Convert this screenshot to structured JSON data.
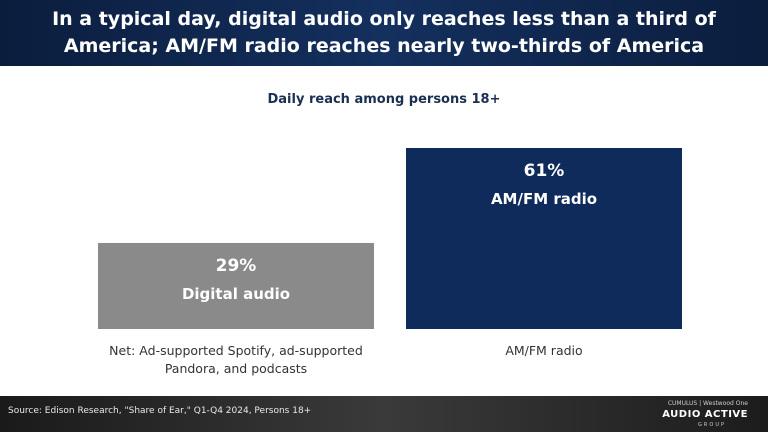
{
  "header": {
    "line1": "In a typical day, digital audio only reaches less than a third of",
    "line2": "America; AM/FM radio reaches nearly two-thirds of America"
  },
  "subtitle": "Daily reach among persons 18+",
  "chart_data": {
    "type": "bar",
    "title": "Daily reach among persons 18+",
    "ylim": [
      0,
      61
    ],
    "grid": false,
    "categories": [
      "Net: Ad-supported Spotify, ad-supported Pandora, and podcasts",
      "AM/FM radio"
    ],
    "values": [
      29,
      61
    ],
    "value_labels": [
      "29%",
      "AM/FM radio"
    ],
    "percent_labels": [
      "29%",
      "61%"
    ],
    "bar_names": [
      "Digital audio",
      "AM/FM radio"
    ],
    "category_label_lines": [
      [
        "Net: Ad-supported Spotify, ad-supported",
        "Pandora, and podcasts"
      ],
      [
        "AM/FM radio"
      ]
    ],
    "colors": [
      "#8a8a8a",
      "#0f2b5b"
    ]
  },
  "footer": {
    "source": "Source: Edison Research, \"Share of Ear,\" Q1-Q4 2024, Persons 18+",
    "logo_brands": "CUMULUS | Westwood One",
    "logo_name": "AUDIO ACTIVE",
    "logo_sub": "GROUP"
  }
}
